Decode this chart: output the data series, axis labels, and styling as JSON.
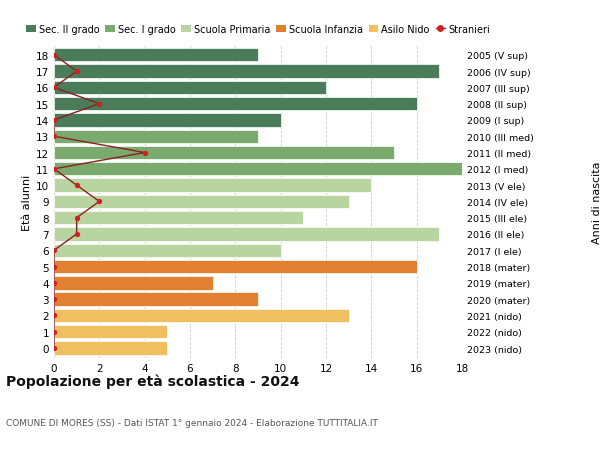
{
  "title": "Popolazione per età scolastica - 2024",
  "subtitle": "COMUNE DI MORES (SS) - Dati ISTAT 1° gennaio 2024 - Elaborazione TUTTITALIA.IT",
  "ylabel_left": "Età alunni",
  "ylabel_right": "Anni di nascita",
  "ages": [
    18,
    17,
    16,
    15,
    14,
    13,
    12,
    11,
    10,
    9,
    8,
    7,
    6,
    5,
    4,
    3,
    2,
    1,
    0
  ],
  "years": [
    "2005 (V sup)",
    "2006 (IV sup)",
    "2007 (III sup)",
    "2008 (II sup)",
    "2009 (I sup)",
    "2010 (III med)",
    "2011 (II med)",
    "2012 (I med)",
    "2013 (V ele)",
    "2014 (IV ele)",
    "2015 (III ele)",
    "2016 (II ele)",
    "2017 (I ele)",
    "2018 (mater)",
    "2019 (mater)",
    "2020 (mater)",
    "2021 (nido)",
    "2022 (nido)",
    "2023 (nido)"
  ],
  "bar_values": [
    9,
    17,
    12,
    16,
    10,
    9,
    15,
    18,
    14,
    13,
    11,
    17,
    10,
    16,
    7,
    9,
    13,
    5,
    5
  ],
  "bar_colors": [
    "#4a7c59",
    "#4a7c59",
    "#4a7c59",
    "#4a7c59",
    "#4a7c59",
    "#7aaa6d",
    "#7aaa6d",
    "#7aaa6d",
    "#b8d4a0",
    "#b8d4a0",
    "#b8d4a0",
    "#b8d4a0",
    "#b8d4a0",
    "#e08030",
    "#e08030",
    "#e08030",
    "#f0c060",
    "#f0c060",
    "#f0c060"
  ],
  "stranieri_values": [
    0,
    1,
    0,
    2,
    0,
    0,
    4,
    0,
    1,
    2,
    1,
    1,
    0,
    0,
    0,
    0,
    0,
    0,
    0
  ],
  "legend_labels": [
    "Sec. II grado",
    "Sec. I grado",
    "Scuola Primaria",
    "Scuola Infanzia",
    "Asilo Nido",
    "Stranieri"
  ],
  "legend_colors": [
    "#4a7c59",
    "#7aaa6d",
    "#b8d4a0",
    "#e08030",
    "#f0c060",
    "#c0392b"
  ],
  "xlim": [
    0,
    18
  ],
  "background_color": "#ffffff",
  "bar_height": 0.82,
  "grid_color": "#cccccc",
  "stranieri_line_color": "#8b2020",
  "stranieri_dot_color": "#cc2222"
}
